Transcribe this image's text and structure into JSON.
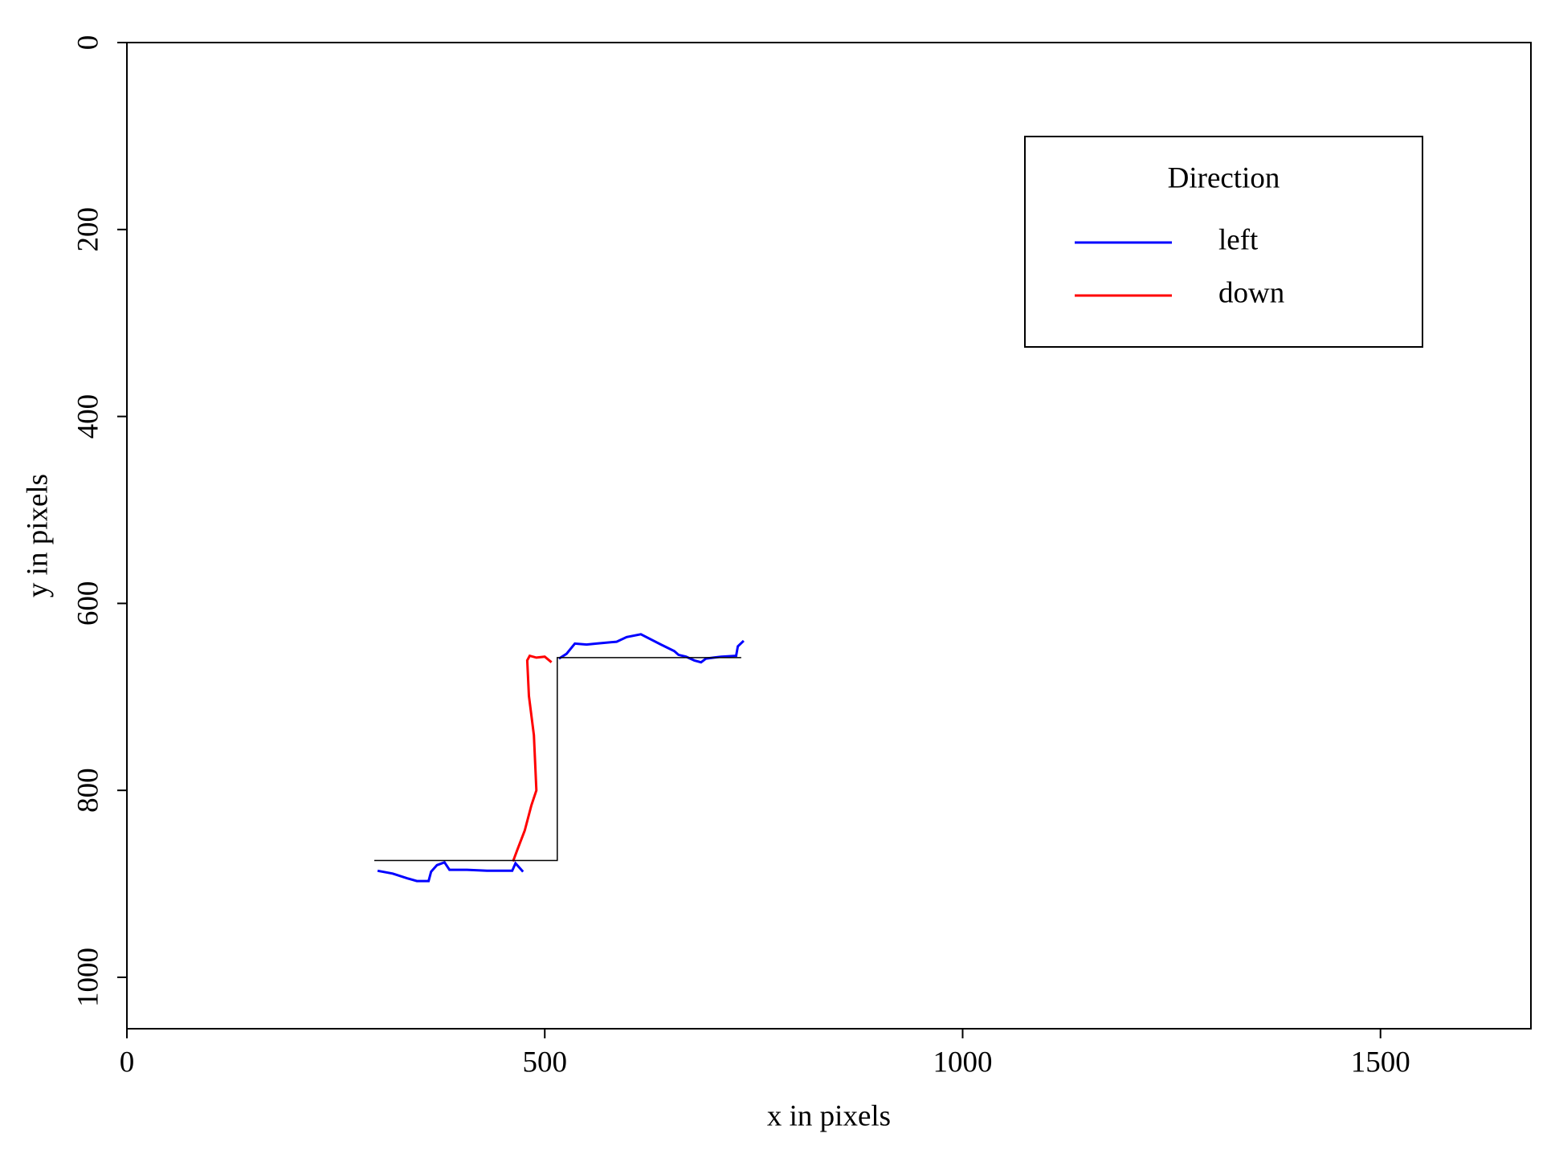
{
  "chart_data": {
    "type": "line",
    "xlabel": "x in pixels",
    "ylabel": "y in pixels",
    "xlim": [
      0,
      1680
    ],
    "ylim": [
      1055,
      0
    ],
    "xticks": [
      0,
      500,
      1000,
      1500
    ],
    "yticks": [
      0,
      200,
      400,
      600,
      800,
      1000
    ],
    "legend": {
      "title": "Direction",
      "position": "top-right"
    },
    "series": [
      {
        "name": "left",
        "color": "#0000ff",
        "x": [
          738,
          731,
          729,
          711,
          693,
          687,
          679,
          669,
          660,
          655,
          639,
          615,
          598,
          586,
          562,
          550,
          536,
          526,
          517,
          null,
          474,
          465,
          461,
          431,
          407,
          386,
          380,
          371,
          364,
          361,
          347,
          335,
          318,
          300
        ],
        "values": [
          640,
          646,
          656,
          657,
          659,
          663,
          661,
          657,
          655,
          651,
          644,
          633,
          636,
          641,
          643,
          644,
          643,
          654,
          659,
          null,
          887,
          878,
          886,
          886,
          885,
          885,
          877,
          880,
          887,
          897,
          897,
          894,
          889,
          886
        ]
      },
      {
        "name": "down",
        "color": "#ff0000",
        "x": [
          508,
          500,
          490,
          482,
          479,
          481,
          487,
          490,
          484,
          476,
          467,
          462
        ],
        "values": [
          663,
          657,
          658,
          656,
          661,
          699,
          741,
          800,
          816,
          843,
          864,
          876
        ]
      },
      {
        "color": "#000000",
        "x": [
          296,
          515,
          515,
          735
        ],
        "values": [
          875,
          875,
          658,
          658
        ]
      }
    ]
  }
}
